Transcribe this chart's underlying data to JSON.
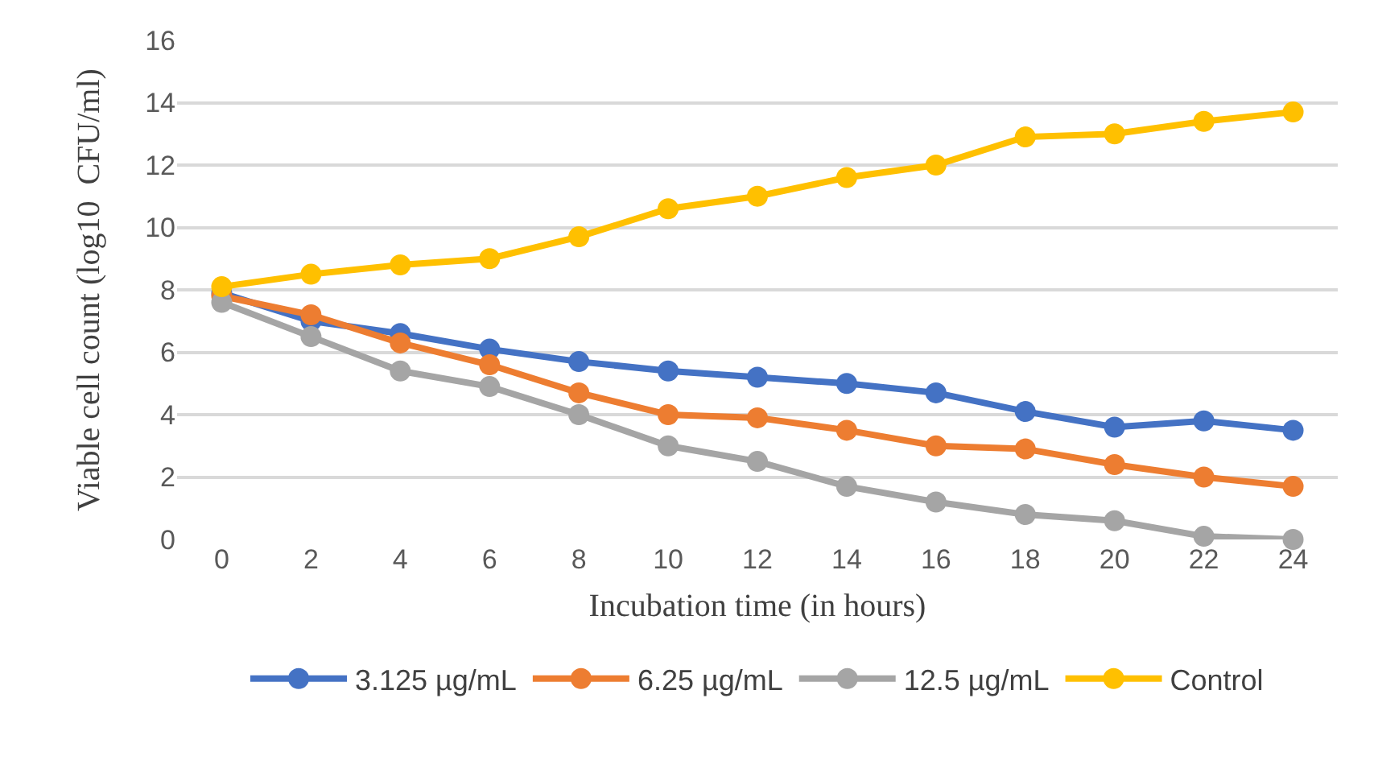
{
  "chart_data": {
    "type": "line",
    "xlabel": "Incubation time (in hours)",
    "ylabel": "Viable cell count (log10  CFU/ml)",
    "x": [
      0,
      2,
      4,
      6,
      8,
      10,
      12,
      14,
      16,
      18,
      20,
      22,
      24
    ],
    "series": [
      {
        "name": "3.125 µg/mL",
        "color": "#4472c4",
        "values": [
          7.9,
          7.0,
          6.6,
          6.1,
          5.7,
          5.4,
          5.2,
          5.0,
          4.7,
          4.1,
          3.6,
          3.8,
          3.5
        ]
      },
      {
        "name": "6.25 µg/mL",
        "color": "#ed7d31",
        "values": [
          7.8,
          7.2,
          6.3,
          5.6,
          4.7,
          4.0,
          3.9,
          3.5,
          3.0,
          2.9,
          2.4,
          2.0,
          1.7
        ]
      },
      {
        "name": "12.5 µg/mL",
        "color": "#a5a5a5",
        "values": [
          7.6,
          6.5,
          5.4,
          4.9,
          4.0,
          3.0,
          2.5,
          1.7,
          1.2,
          0.8,
          0.6,
          0.1,
          0.0
        ]
      },
      {
        "name": "Control",
        "color": "#ffc000",
        "values": [
          8.1,
          8.5,
          8.8,
          9.0,
          9.7,
          10.6,
          11.0,
          11.6,
          12.0,
          12.9,
          13.0,
          13.4,
          13.7
        ]
      }
    ],
    "xlim": [
      -1,
      25
    ],
    "xticks": [
      0,
      2,
      4,
      6,
      8,
      10,
      12,
      14,
      16,
      18,
      20,
      22,
      24
    ],
    "ylim": [
      0,
      16
    ],
    "yticks": [
      0,
      2,
      4,
      6,
      8,
      10,
      12,
      14,
      16
    ],
    "grid": "y",
    "legend": "bottom",
    "marker": "circle",
    "line_style": "solid"
  }
}
